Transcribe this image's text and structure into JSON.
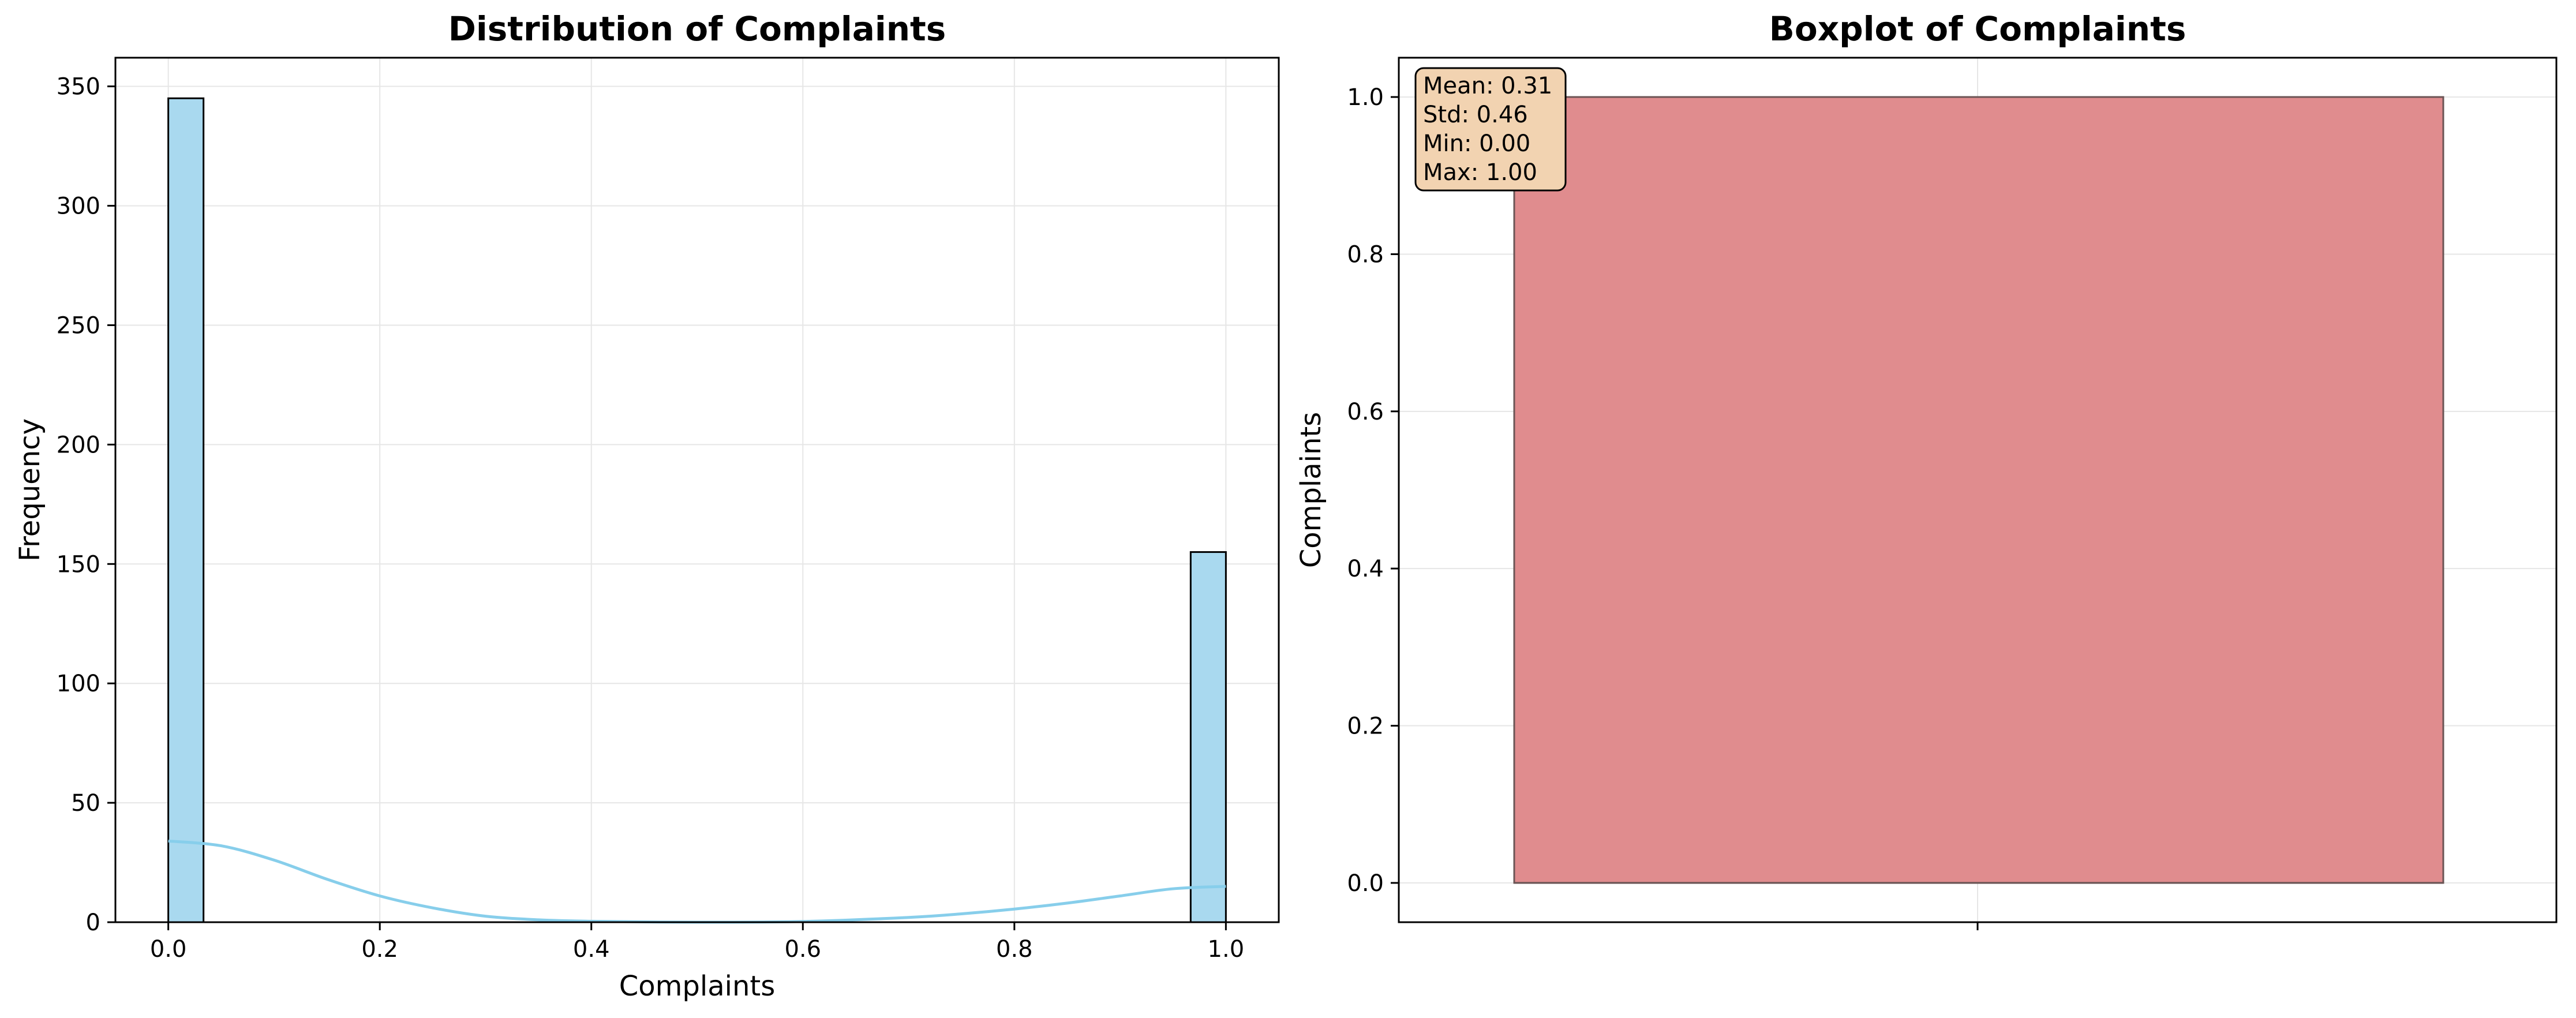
{
  "chart_data": [
    {
      "type": "bar",
      "subtype": "histogram",
      "title": "Distribution of Complaints",
      "xlabel": "Complaints",
      "ylabel": "Frequency",
      "xlim": [
        -0.05,
        1.05
      ],
      "ylim": [
        0,
        362
      ],
      "xticks": [
        "0.0",
        "0.2",
        "0.4",
        "0.6",
        "0.8",
        "1.0"
      ],
      "yticks": [
        "0",
        "50",
        "100",
        "150",
        "200",
        "250",
        "300",
        "350"
      ],
      "grid": true,
      "bins": [
        {
          "x0": 0.0,
          "x1": 0.0333,
          "count": 345
        },
        {
          "x0": 0.9667,
          "x1": 1.0,
          "count": 155
        }
      ],
      "kde": {
        "x": [
          0.0,
          0.05,
          0.1,
          0.15,
          0.2,
          0.25,
          0.3,
          0.35,
          0.4,
          0.5,
          0.6,
          0.7,
          0.75,
          0.8,
          0.85,
          0.9,
          0.95,
          1.0
        ],
        "y": [
          34,
          32,
          26,
          18,
          11,
          6,
          2.5,
          1,
          0.4,
          0,
          0.3,
          2,
          3.5,
          5.5,
          8,
          11,
          14,
          15
        ]
      },
      "colors": {
        "bar": "#a9d9ef",
        "edge": "#000000",
        "kde": "#87ceeb"
      }
    },
    {
      "type": "box",
      "title": "Boxplot of Complaints",
      "xlabel": "",
      "ylabel": "Complaints",
      "ylim": [
        -0.05,
        1.05
      ],
      "yticks": [
        "0.0",
        "0.2",
        "0.4",
        "0.6",
        "0.8",
        "1.0"
      ],
      "grid": true,
      "box": {
        "q1": 0.0,
        "median": 0.0,
        "q3": 1.0,
        "whisker_low": 0.0,
        "whisker_high": 1.0
      },
      "stats": [
        "Mean: 0.31",
        "Std: 0.46",
        "Min: 0.00",
        "Max: 1.00"
      ],
      "stats_placement": "top-left",
      "colors": {
        "box": "#e08c8e",
        "box_edge": "#6b5555",
        "stats_bg": "#f2d3b1"
      }
    }
  ]
}
